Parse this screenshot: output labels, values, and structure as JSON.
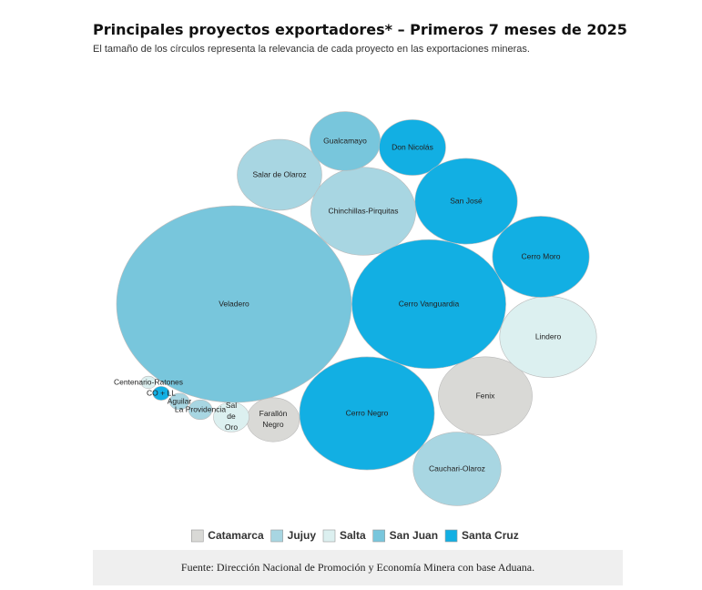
{
  "chart_data": {
    "type": "bubble",
    "title": "Principales proyectos exportadores* – Primeros 7 meses de 2025",
    "subtitle": "El tamaño de los círculos representa la relevancia de cada proyecto en las exportaciones mineras.",
    "source": "Fuente: Dirección Nacional de Promoción y Economía Minera con base Aduana.",
    "series": [
      {
        "name": "Catamarca",
        "color": "#d9d9d6",
        "labels": [
          "Fenix",
          "Farallón Negro"
        ],
        "values": [
          16,
          5
        ]
      },
      {
        "name": "Jujuy",
        "color": "#a8d6e2",
        "labels": [
          "Salar de Olaroz",
          "Chinchillas-Pirquitas",
          "Cauchari-Olaroz",
          "La Providencia",
          "Aguilar"
        ],
        "values": [
          13,
          20,
          14,
          1,
          0.7
        ]
      },
      {
        "name": "Salta",
        "color": "#dcf0f0",
        "labels": [
          "Lindero",
          "Sal de Oro",
          "Centenario-Ratones"
        ],
        "values": [
          17,
          2.3,
          0.4
        ]
      },
      {
        "name": "San Juan",
        "color": "#78c6dc",
        "labels": [
          "Veladero",
          "Gualcamayo"
        ],
        "values": [
          100,
          9
        ]
      },
      {
        "name": "Santa Cruz",
        "color": "#12afe3",
        "labels": [
          "Don Nicolás",
          "San José",
          "Cerro Moro",
          "Cerro Vanguardia",
          "Cerro Negro",
          "CO + LL"
        ],
        "values": [
          8,
          19,
          17,
          43,
          33,
          0.5
        ]
      }
    ]
  }
}
